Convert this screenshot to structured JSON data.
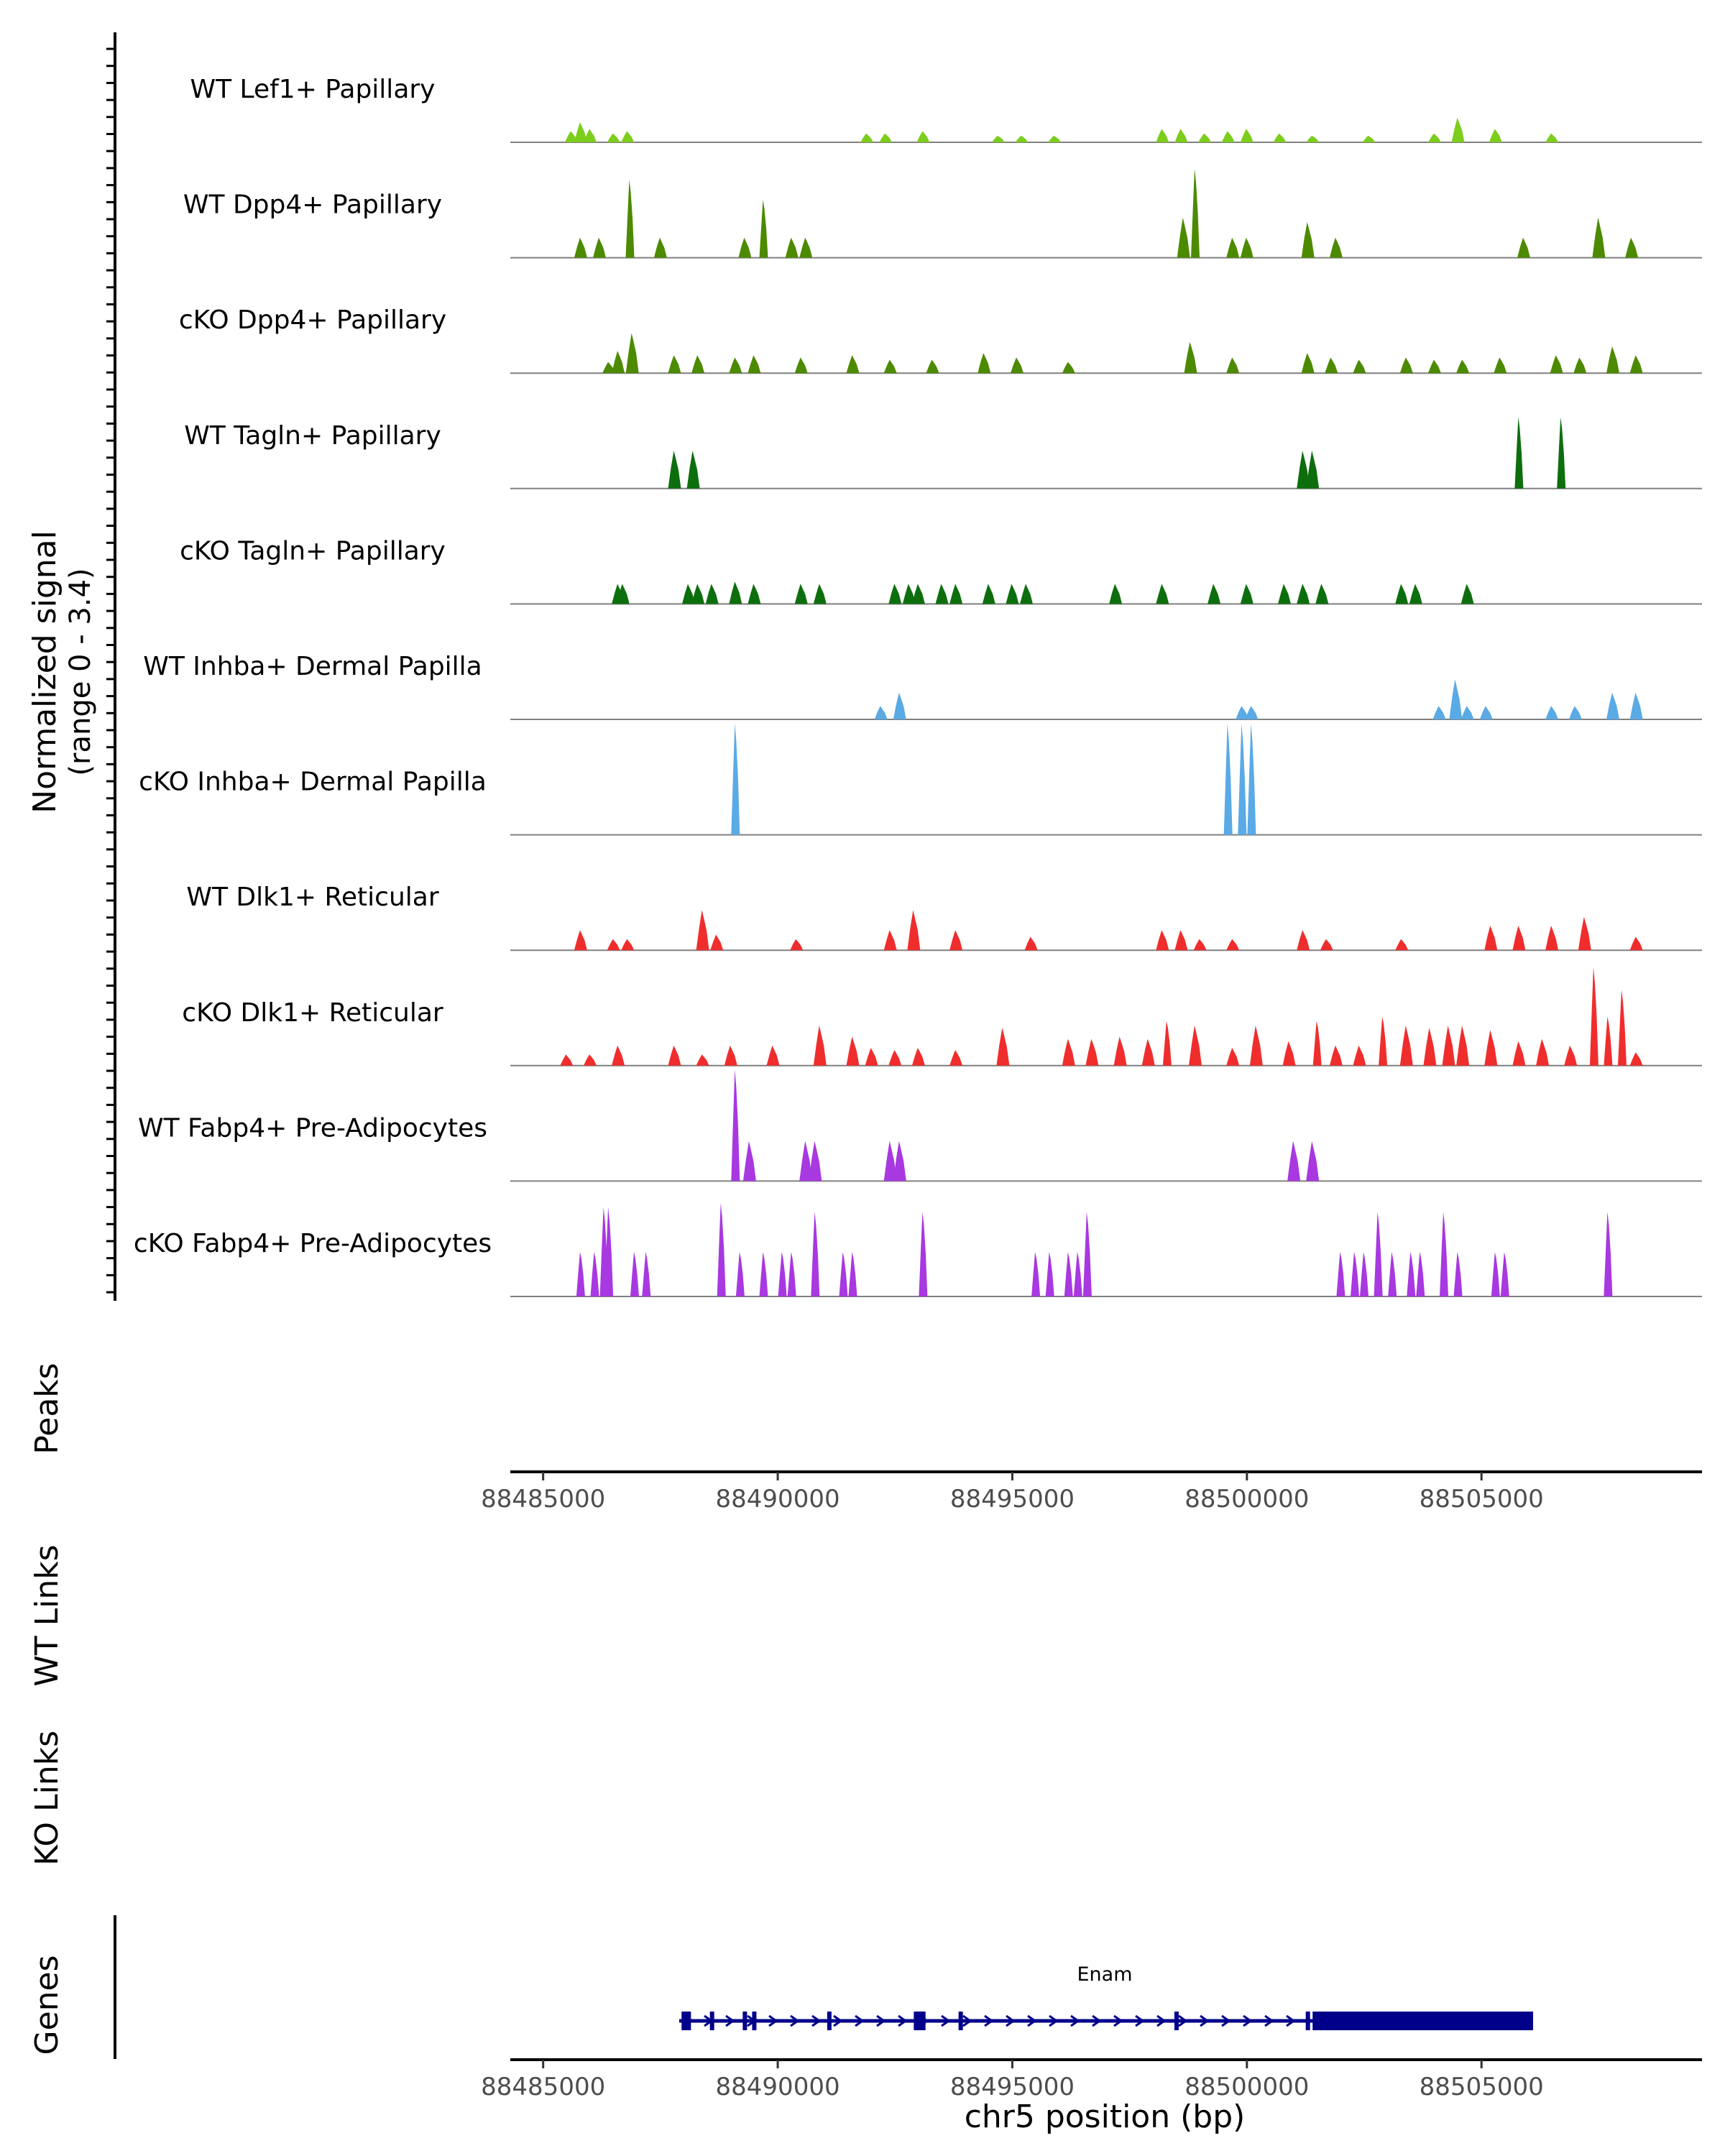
{
  "chart_data": {
    "type": "coverage-track",
    "chromosome": "chr5",
    "xlim": [
      88484300,
      88509700
    ],
    "x_ticks": [
      88485000,
      88490000,
      88495000,
      88500000,
      88505000
    ],
    "x_tick_labels": [
      "88485000",
      "88490000",
      "88495000",
      "88500000",
      "88505000"
    ],
    "xlabel": "chr5 position (bp)",
    "ylabel": "Normalized signal",
    "ylabel_range": "(range 0 - 3.4)",
    "ylim": [
      0,
      3.4
    ],
    "peaks_label": "Peaks",
    "wt_links_label": "WT Links",
    "ko_links_label": "KO Links",
    "genes_label": "Genes",
    "gene": {
      "name": "Enam",
      "start": 88487900,
      "end": 88506100,
      "strand": "+",
      "color": "#00008B",
      "exons": [
        [
          88487950,
          88488150
        ],
        [
          88492900,
          88493150
        ],
        [
          88501400,
          88506100
        ]
      ],
      "small_exons": [
        88488600,
        88489300,
        88489500,
        88491100,
        88493900,
        88498500,
        88501300
      ]
    },
    "series": [
      {
        "name": "WT Lef1+ Papillary",
        "color": "#7CCD1C",
        "peaks": [
          [
            88485600,
            0.25
          ],
          [
            88485800,
            0.45
          ],
          [
            88486000,
            0.3
          ],
          [
            88486500,
            0.2
          ],
          [
            88486800,
            0.25
          ],
          [
            88491900,
            0.2
          ],
          [
            88492300,
            0.2
          ],
          [
            88493100,
            0.25
          ],
          [
            88494700,
            0.15
          ],
          [
            88495200,
            0.15
          ],
          [
            88495900,
            0.15
          ],
          [
            88498200,
            0.3
          ],
          [
            88498600,
            0.3
          ],
          [
            88499100,
            0.2
          ],
          [
            88499600,
            0.25
          ],
          [
            88500000,
            0.3
          ],
          [
            88500700,
            0.2
          ],
          [
            88501400,
            0.15
          ],
          [
            88502600,
            0.15
          ],
          [
            88504000,
            0.2
          ],
          [
            88504500,
            0.55
          ],
          [
            88505300,
            0.3
          ],
          [
            88506500,
            0.2
          ]
        ]
      },
      {
        "name": "WT Dpp4+ Papillary",
        "color": "#4C8A00",
        "peaks": [
          [
            88485800,
            0.45
          ],
          [
            88486200,
            0.45
          ],
          [
            88486850,
            1.75
          ],
          [
            88487500,
            0.45
          ],
          [
            88489300,
            0.45
          ],
          [
            88489700,
            1.3
          ],
          [
            88490300,
            0.45
          ],
          [
            88490600,
            0.45
          ],
          [
            88498650,
            0.9
          ],
          [
            88498900,
            2.0
          ],
          [
            88499700,
            0.45
          ],
          [
            88500000,
            0.45
          ],
          [
            88501300,
            0.8
          ],
          [
            88501900,
            0.45
          ],
          [
            88505900,
            0.45
          ],
          [
            88507500,
            0.9
          ],
          [
            88508200,
            0.45
          ]
        ]
      },
      {
        "name": "cKO Dpp4+ Papillary",
        "color": "#4C8A00",
        "peaks": [
          [
            88486400,
            0.25
          ],
          [
            88486600,
            0.5
          ],
          [
            88486900,
            0.9
          ],
          [
            88487800,
            0.4
          ],
          [
            88488300,
            0.4
          ],
          [
            88489100,
            0.35
          ],
          [
            88489500,
            0.4
          ],
          [
            88490500,
            0.35
          ],
          [
            88491600,
            0.4
          ],
          [
            88492400,
            0.3
          ],
          [
            88493300,
            0.3
          ],
          [
            88494400,
            0.45
          ],
          [
            88495100,
            0.35
          ],
          [
            88496200,
            0.25
          ],
          [
            88498800,
            0.7
          ],
          [
            88499700,
            0.35
          ],
          [
            88501300,
            0.45
          ],
          [
            88501800,
            0.35
          ],
          [
            88502400,
            0.3
          ],
          [
            88503400,
            0.35
          ],
          [
            88504000,
            0.3
          ],
          [
            88504600,
            0.3
          ],
          [
            88505400,
            0.35
          ],
          [
            88506600,
            0.4
          ],
          [
            88507100,
            0.35
          ],
          [
            88507800,
            0.6
          ],
          [
            88508300,
            0.4
          ]
        ]
      },
      {
        "name": "WT Tagln+ Papillary",
        "color": "#0D6E0D",
        "peaks": [
          [
            88487800,
            0.85
          ],
          [
            88488200,
            0.85
          ],
          [
            88501200,
            0.85
          ],
          [
            88501400,
            0.85
          ],
          [
            88505800,
            1.6
          ],
          [
            88506700,
            1.6
          ]
        ]
      },
      {
        "name": "cKO Tagln+ Papillary",
        "color": "#0D6E0D",
        "peaks": [
          [
            88486600,
            0.45
          ],
          [
            88486700,
            0.45
          ],
          [
            88488100,
            0.45
          ],
          [
            88488300,
            0.45
          ],
          [
            88488600,
            0.45
          ],
          [
            88489100,
            0.5
          ],
          [
            88489500,
            0.45
          ],
          [
            88490500,
            0.45
          ],
          [
            88490900,
            0.45
          ],
          [
            88492500,
            0.45
          ],
          [
            88492800,
            0.45
          ],
          [
            88493000,
            0.45
          ],
          [
            88493500,
            0.45
          ],
          [
            88493800,
            0.45
          ],
          [
            88494500,
            0.45
          ],
          [
            88495000,
            0.45
          ],
          [
            88495300,
            0.45
          ],
          [
            88497200,
            0.45
          ],
          [
            88498200,
            0.45
          ],
          [
            88499300,
            0.45
          ],
          [
            88500000,
            0.45
          ],
          [
            88500800,
            0.45
          ],
          [
            88501200,
            0.45
          ],
          [
            88501600,
            0.45
          ],
          [
            88503300,
            0.45
          ],
          [
            88503600,
            0.45
          ],
          [
            88504700,
            0.45
          ]
        ]
      },
      {
        "name": "WT Inhba+ Dermal Papilla",
        "color": "#5AAAE6",
        "peaks": [
          [
            88492200,
            0.3
          ],
          [
            88492600,
            0.6
          ],
          [
            88499900,
            0.3
          ],
          [
            88500100,
            0.3
          ],
          [
            88504100,
            0.3
          ],
          [
            88504450,
            0.9
          ],
          [
            88504700,
            0.3
          ],
          [
            88505100,
            0.3
          ],
          [
            88506500,
            0.3
          ],
          [
            88507000,
            0.3
          ],
          [
            88507800,
            0.6
          ],
          [
            88508300,
            0.6
          ]
        ]
      },
      {
        "name": "cKO Inhba+ Dermal Papilla",
        "color": "#5AAAE6",
        "peaks": [
          [
            88489100,
            2.5
          ],
          [
            88499600,
            2.5
          ],
          [
            88499900,
            2.5
          ],
          [
            88500100,
            2.5
          ]
        ]
      },
      {
        "name": "WT Dlk1+ Reticular",
        "color": "#F02D2D",
        "peaks": [
          [
            88485800,
            0.45
          ],
          [
            88486500,
            0.25
          ],
          [
            88486800,
            0.25
          ],
          [
            88488400,
            0.9
          ],
          [
            88488700,
            0.35
          ],
          [
            88490400,
            0.25
          ],
          [
            88492400,
            0.45
          ],
          [
            88492900,
            0.9
          ],
          [
            88493800,
            0.45
          ],
          [
            88495400,
            0.3
          ],
          [
            88498200,
            0.45
          ],
          [
            88498600,
            0.45
          ],
          [
            88499000,
            0.25
          ],
          [
            88499700,
            0.25
          ],
          [
            88501200,
            0.45
          ],
          [
            88501700,
            0.25
          ],
          [
            88503300,
            0.25
          ],
          [
            88505200,
            0.55
          ],
          [
            88505800,
            0.55
          ],
          [
            88506500,
            0.55
          ],
          [
            88507200,
            0.75
          ],
          [
            88508300,
            0.3
          ]
        ]
      },
      {
        "name": "cKO Dlk1+ Reticular",
        "color": "#F02D2D",
        "peaks": [
          [
            88485500,
            0.25
          ],
          [
            88486000,
            0.25
          ],
          [
            88486600,
            0.45
          ],
          [
            88487800,
            0.45
          ],
          [
            88488400,
            0.25
          ],
          [
            88489000,
            0.45
          ],
          [
            88489900,
            0.45
          ],
          [
            88490900,
            0.9
          ],
          [
            88491600,
            0.65
          ],
          [
            88492000,
            0.4
          ],
          [
            88492500,
            0.35
          ],
          [
            88493000,
            0.4
          ],
          [
            88493800,
            0.35
          ],
          [
            88494800,
            0.85
          ],
          [
            88496200,
            0.6
          ],
          [
            88496700,
            0.6
          ],
          [
            88497300,
            0.65
          ],
          [
            88497900,
            0.6
          ],
          [
            88498300,
            1.0
          ],
          [
            88498900,
            0.9
          ],
          [
            88499700,
            0.4
          ],
          [
            88500200,
            0.9
          ],
          [
            88500900,
            0.55
          ],
          [
            88501500,
            1.0
          ],
          [
            88501900,
            0.45
          ],
          [
            88502400,
            0.45
          ],
          [
            88502900,
            1.1
          ],
          [
            88503400,
            0.9
          ],
          [
            88503900,
            0.85
          ],
          [
            88504300,
            0.9
          ],
          [
            88504600,
            0.9
          ],
          [
            88505200,
            0.8
          ],
          [
            88505800,
            0.55
          ],
          [
            88506300,
            0.6
          ],
          [
            88506900,
            0.45
          ],
          [
            88507400,
            2.2
          ],
          [
            88507700,
            1.1
          ],
          [
            88508000,
            1.7
          ],
          [
            88508300,
            0.3
          ]
        ]
      },
      {
        "name": "WT Fabp4+ Pre-Adipocytes",
        "color": "#A838E0",
        "peaks": [
          [
            88489100,
            2.5
          ],
          [
            88489400,
            0.9
          ],
          [
            88490600,
            0.9
          ],
          [
            88490800,
            0.9
          ],
          [
            88492400,
            0.9
          ],
          [
            88492600,
            0.9
          ],
          [
            88501000,
            0.9
          ],
          [
            88501400,
            0.9
          ]
        ]
      },
      {
        "name": "cKO Fabp4+ Pre-Adipocytes",
        "color": "#A838E0",
        "peaks": [
          [
            88485800,
            1.0
          ],
          [
            88486100,
            1.0
          ],
          [
            88486300,
            2.0
          ],
          [
            88486400,
            2.0
          ],
          [
            88486950,
            1.0
          ],
          [
            88487200,
            1.0
          ],
          [
            88488800,
            2.1
          ],
          [
            88489200,
            1.0
          ],
          [
            88489700,
            1.0
          ],
          [
            88490100,
            1.0
          ],
          [
            88490300,
            1.0
          ],
          [
            88490800,
            1.9
          ],
          [
            88491400,
            1.0
          ],
          [
            88491600,
            1.0
          ],
          [
            88493100,
            1.9
          ],
          [
            88495500,
            1.0
          ],
          [
            88495800,
            1.0
          ],
          [
            88496200,
            1.0
          ],
          [
            88496400,
            1.0
          ],
          [
            88496600,
            1.9
          ],
          [
            88502000,
            1.0
          ],
          [
            88502300,
            1.0
          ],
          [
            88502500,
            1.0
          ],
          [
            88502800,
            1.9
          ],
          [
            88503100,
            1.0
          ],
          [
            88503500,
            1.0
          ],
          [
            88503700,
            1.0
          ],
          [
            88504200,
            1.9
          ],
          [
            88504500,
            1.0
          ],
          [
            88505300,
            1.0
          ],
          [
            88505500,
            1.0
          ],
          [
            88507700,
            1.9
          ]
        ]
      }
    ]
  }
}
